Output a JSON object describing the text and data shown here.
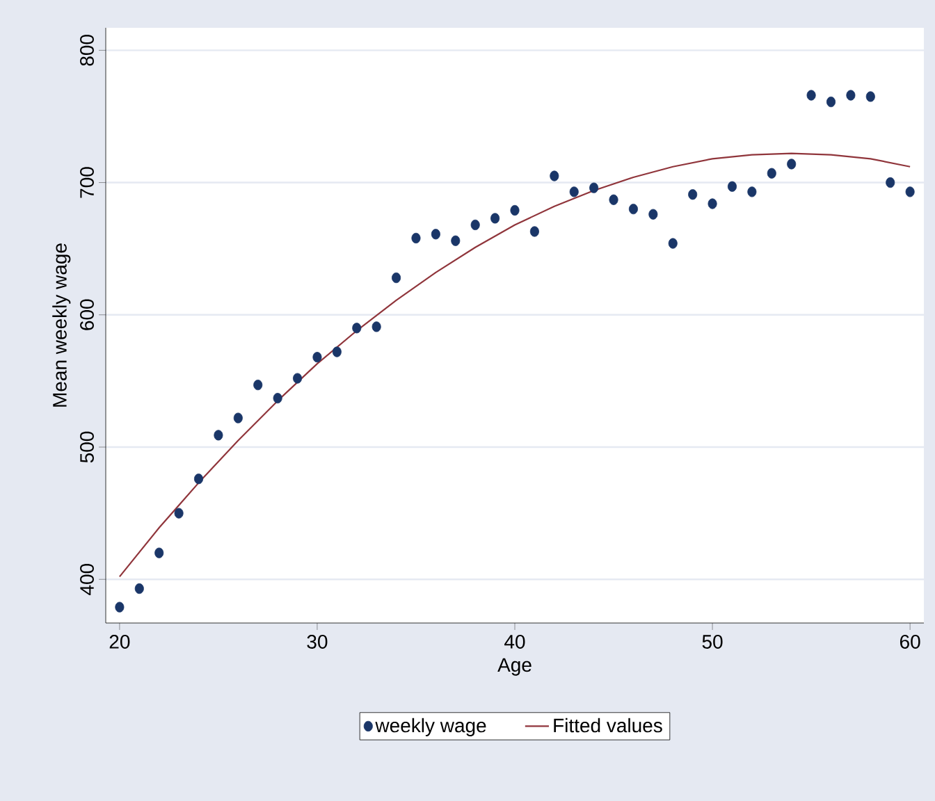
{
  "chart_data": {
    "type": "scatter",
    "xlabel": "Age",
    "ylabel": "Mean weekly wage",
    "xlim": [
      19.3,
      60.7
    ],
    "ylim": [
      367,
      817
    ],
    "xticks": [
      20,
      30,
      40,
      50,
      60
    ],
    "yticks": [
      400,
      500,
      600,
      700,
      800
    ],
    "grid": "y",
    "legend": "bottom",
    "series": [
      {
        "name": "weekly wage",
        "marker": "circle",
        "color": "#1a3668",
        "x": [
          20,
          21,
          22,
          23,
          24,
          25,
          26,
          27,
          28,
          29,
          30,
          31,
          32,
          33,
          34,
          35,
          36,
          37,
          38,
          39,
          40,
          41,
          42,
          43,
          44,
          45,
          46,
          47,
          48,
          49,
          50,
          51,
          52,
          53,
          54,
          55,
          56,
          57,
          58,
          59,
          60
        ],
        "values": [
          379,
          393,
          420,
          450,
          476,
          509,
          522,
          547,
          537,
          552,
          568,
          572,
          590,
          591,
          628,
          658,
          661,
          656,
          668,
          673,
          679,
          663,
          705,
          693,
          696,
          687,
          680,
          676,
          654,
          691,
          684,
          697,
          693,
          707,
          714,
          766,
          761,
          766,
          765,
          700,
          693
        ]
      },
      {
        "name": "Fitted values",
        "type": "line",
        "color": "#90353b",
        "x": [
          20,
          22,
          24,
          26,
          28,
          30,
          32,
          34,
          36,
          38,
          40,
          42,
          44,
          46,
          48,
          50,
          52,
          54,
          56,
          58,
          60
        ],
        "values": [
          402,
          439,
          473,
          505,
          535,
          563,
          588,
          611,
          632,
          651,
          668,
          682,
          694,
          704,
          712,
          718,
          721,
          722,
          721,
          718,
          712
        ]
      }
    ]
  }
}
